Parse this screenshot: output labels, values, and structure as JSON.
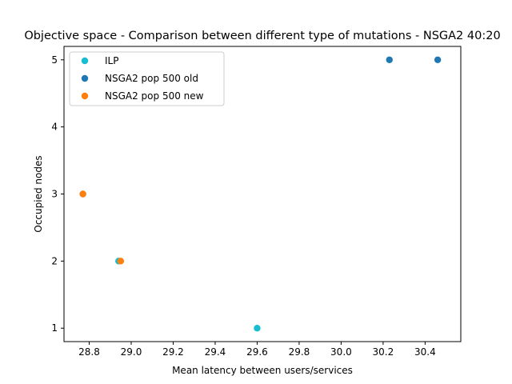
{
  "chart_data": {
    "type": "scatter",
    "title": "Objective space - Comparison between different type of mutations - NSGA2 40:20",
    "xlabel": "Mean latency between users/services",
    "ylabel": "Occupied nodes",
    "xlim": [
      28.68,
      30.57
    ],
    "ylim": [
      0.8,
      5.2
    ],
    "xticks": [
      28.8,
      29.0,
      29.2,
      29.4,
      29.6,
      29.8,
      30.0,
      30.2,
      30.4
    ],
    "xtick_labels": [
      "28.8",
      "29.0",
      "29.2",
      "29.4",
      "29.6",
      "29.8",
      "30.0",
      "30.2",
      "30.4"
    ],
    "yticks": [
      1,
      2,
      3,
      4,
      5
    ],
    "ytick_labels": [
      "1",
      "2",
      "3",
      "4",
      "5"
    ],
    "grid": false,
    "legend_position": "top-left",
    "series": [
      {
        "name": "ILP",
        "color": "#17becf",
        "points": [
          {
            "x": 28.77,
            "y": 3
          },
          {
            "x": 28.94,
            "y": 2
          },
          {
            "x": 29.6,
            "y": 1
          }
        ]
      },
      {
        "name": "NSGA2 pop 500 old",
        "color": "#1f77b4",
        "points": [
          {
            "x": 30.23,
            "y": 5
          },
          {
            "x": 30.46,
            "y": 5
          }
        ]
      },
      {
        "name": "NSGA2 pop 500 new",
        "color": "#ff7f0e",
        "points": [
          {
            "x": 28.77,
            "y": 3
          },
          {
            "x": 28.95,
            "y": 2
          }
        ]
      }
    ]
  }
}
